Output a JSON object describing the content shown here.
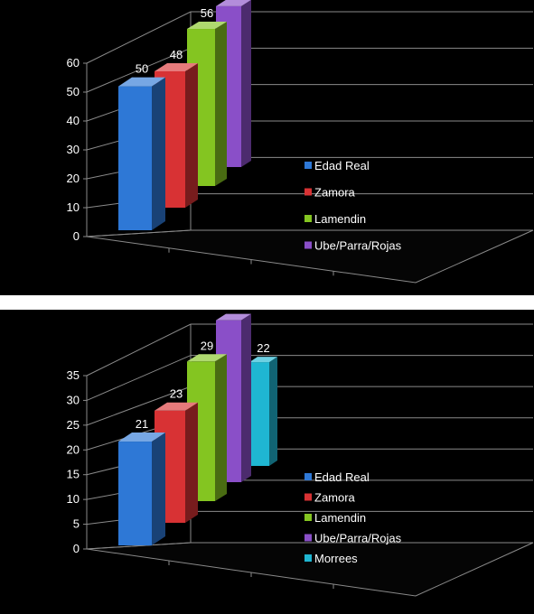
{
  "chart_data": [
    {
      "type": "bar",
      "view": "3d-clustered-columns",
      "categories": [
        ""
      ],
      "series": [
        {
          "name": "Edad Real",
          "values": [
            50
          ],
          "color": "#2e78d6"
        },
        {
          "name": "Zamora",
          "values": [
            48
          ],
          "color": "#d83234"
        },
        {
          "name": "Lamendin",
          "values": [
            56
          ],
          "color": "#84c521"
        },
        {
          "name": "Ube/Parra/Rojas",
          "values": [
            58
          ],
          "color": "#8a4fc8"
        }
      ],
      "yticks": [
        "0",
        "10",
        "20",
        "30",
        "40",
        "50",
        "60"
      ],
      "ylim": [
        0,
        60
      ],
      "data_labels": true,
      "grid": true,
      "legend": "right-inside"
    },
    {
      "type": "bar",
      "view": "3d-clustered-columns",
      "categories": [
        ""
      ],
      "series": [
        {
          "name": "Edad Real",
          "values": [
            21
          ],
          "color": "#2e78d6"
        },
        {
          "name": "Zamora",
          "values": [
            23
          ],
          "color": "#d83234"
        },
        {
          "name": "Lamendin",
          "values": [
            29
          ],
          "color": "#84c521"
        },
        {
          "name": "Ube/Parra/Rojas",
          "values": [
            34
          ],
          "color": "#8a4fc8"
        },
        {
          "name": "Morrees",
          "values": [
            22
          ],
          "color": "#1fb6d2"
        }
      ],
      "yticks": [
        "0",
        "5",
        "10",
        "15",
        "20",
        "25",
        "30",
        "35"
      ],
      "ylim": [
        0,
        35
      ],
      "data_labels": true,
      "grid": true,
      "legend": "right-inside"
    }
  ]
}
